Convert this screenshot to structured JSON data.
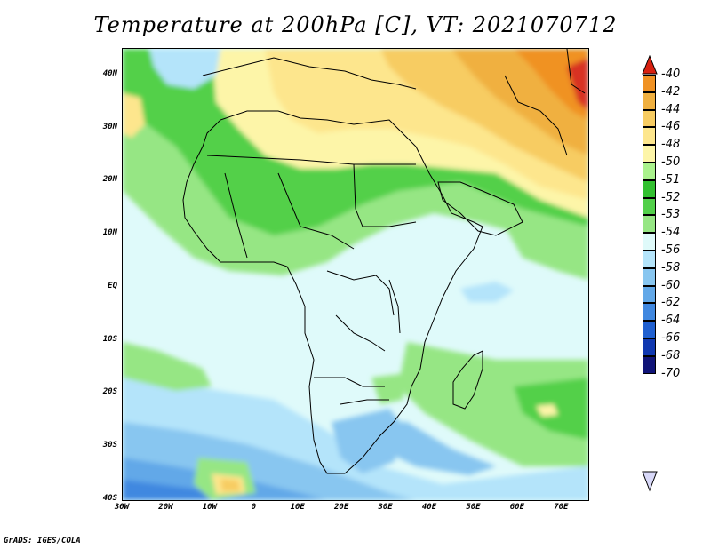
{
  "title": "Temperature at 200hPa [C], VT: 2021070712",
  "credit": "GrADS: IGES/COLA",
  "map": {
    "type": "filled-contour",
    "variable": "Temperature at 200hPa",
    "units": "C",
    "valid_time": "2021070712",
    "lon_range": [
      -30,
      76
    ],
    "lat_range": [
      -40,
      45
    ],
    "lat_ticks": [
      {
        "label": "40N",
        "value": 40
      },
      {
        "label": "30N",
        "value": 30
      },
      {
        "label": "20N",
        "value": 20
      },
      {
        "label": "10N",
        "value": 10
      },
      {
        "label": "EQ",
        "value": 0
      },
      {
        "label": "10S",
        "value": -10
      },
      {
        "label": "20S",
        "value": -20
      },
      {
        "label": "30S",
        "value": -30
      },
      {
        "label": "40S",
        "value": -40
      }
    ],
    "lon_ticks": [
      {
        "label": "30W",
        "value": -30
      },
      {
        "label": "20W",
        "value": -20
      },
      {
        "label": "10W",
        "value": -10
      },
      {
        "label": "0",
        "value": 0
      },
      {
        "label": "10E",
        "value": 10
      },
      {
        "label": "20E",
        "value": 20
      },
      {
        "label": "30E",
        "value": 30
      },
      {
        "label": "40E",
        "value": 40
      },
      {
        "label": "50E",
        "value": 50
      },
      {
        "label": "60E",
        "value": 60
      },
      {
        "label": "70E",
        "value": 70
      }
    ]
  },
  "colorbar": {
    "labels": [
      "-40",
      "-42",
      "-44",
      "-46",
      "-48",
      "-50",
      "-51",
      "-52",
      "-53",
      "-54",
      "-56",
      "-58",
      "-60",
      "-62",
      "-64",
      "-66",
      "-68",
      "-70"
    ],
    "colors": [
      "#f09224",
      "#f0b040",
      "#f7cc62",
      "#fde68d",
      "#fdf5a8",
      "#aaf28d",
      "#32c030",
      "#52d04a",
      "#96e684",
      "#dffafa",
      "#b4e4fa",
      "#88c6f0",
      "#62a8e8",
      "#4088e0",
      "#2060d0",
      "#1038b0",
      "#101478"
    ],
    "top_arrow_color": "#d82010",
    "bottom_arrow_color": "#d8d8f8"
  }
}
